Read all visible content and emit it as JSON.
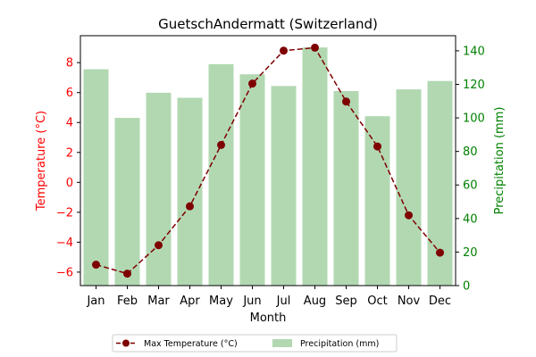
{
  "chart_data": {
    "type": "bar+line",
    "title": "GuetschAndermatt (Switzerland)",
    "xlabel": "Month",
    "ylabel_left": "Temperature (°C)",
    "ylabel_right": "Precipitation (mm)",
    "categories": [
      "Jan",
      "Feb",
      "Mar",
      "Apr",
      "May",
      "Jun",
      "Jul",
      "Aug",
      "Sep",
      "Oct",
      "Nov",
      "Dec"
    ],
    "series": [
      {
        "name": "Max Temperature (°C)",
        "type": "line",
        "axis": "left",
        "color": "#7f0000",
        "values": [
          -5.5,
          -6.1,
          -4.2,
          -1.6,
          2.5,
          6.6,
          8.8,
          9.0,
          5.4,
          2.4,
          -2.2,
          -4.7
        ]
      },
      {
        "name": "Precipitation (mm)",
        "type": "bar",
        "axis": "right",
        "color": "#b2d8b2",
        "values": [
          129,
          100,
          115,
          112,
          132,
          126,
          119,
          142,
          116,
          101,
          117,
          122
        ]
      }
    ],
    "ylim_left": [
      -6.9,
      9.8
    ],
    "ylim_right": [
      0,
      149
    ],
    "yticks_left": [
      -6,
      -4,
      -2,
      0,
      2,
      4,
      6,
      8
    ],
    "yticks_right": [
      0,
      20,
      40,
      60,
      80,
      100,
      120,
      140
    ],
    "left_axis_color": "#ff0000",
    "right_axis_color": "#008000",
    "grid": false,
    "legend_placement": "bottom-center"
  }
}
